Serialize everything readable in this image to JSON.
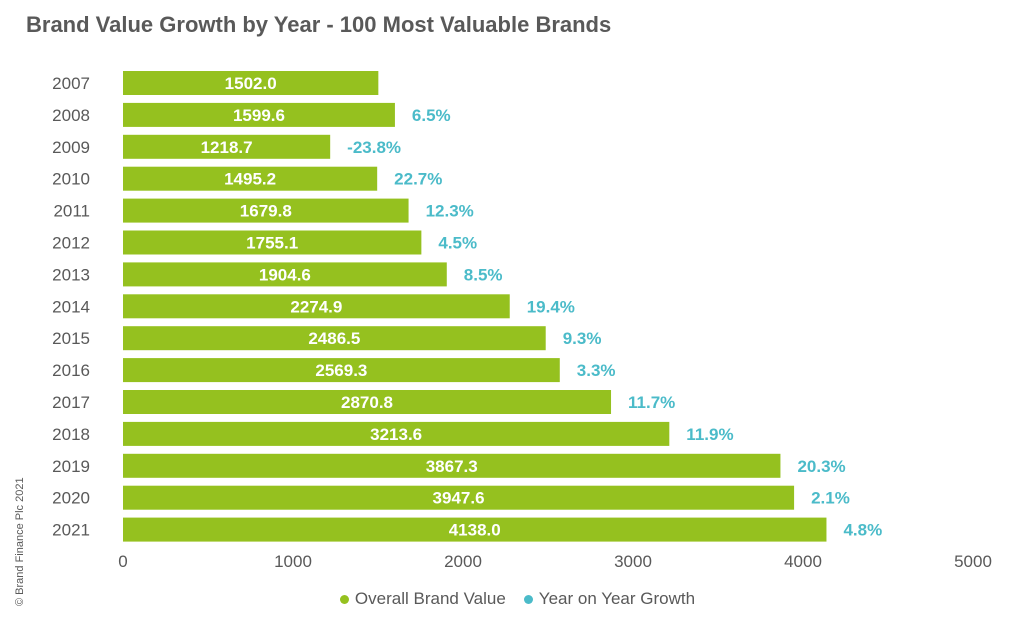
{
  "title": "Brand Value Growth by Year - 100 Most Valuable Brands",
  "copyright": "© Brand Finance Plc 2021",
  "colors": {
    "bar": "#95c11f",
    "growth": "#4bbbc9",
    "text": "#595959"
  },
  "legend": {
    "value_label": "Overall Brand Value",
    "growth_label": "Year on Year Growth"
  },
  "chart_data": {
    "type": "bar",
    "orientation": "horizontal",
    "title": "Brand Value Growth by Year - 100 Most Valuable Brands",
    "categories": [
      "2007",
      "2008",
      "2009",
      "2010",
      "2011",
      "2012",
      "2013",
      "2014",
      "2015",
      "2016",
      "2017",
      "2018",
      "2019",
      "2020",
      "2021"
    ],
    "series": [
      {
        "name": "Overall Brand Value",
        "values": [
          1502.0,
          1599.6,
          1218.7,
          1495.2,
          1679.8,
          1755.1,
          1904.6,
          2274.9,
          2486.5,
          2569.3,
          2870.8,
          3213.6,
          3867.3,
          3947.6,
          4138.0
        ],
        "labels": [
          "1502.0",
          "1599.6",
          "1218.7",
          "1495.2",
          "1679.8",
          "1755.1",
          "1904.6",
          "2274.9",
          "2486.5",
          "2569.3",
          "2870.8",
          "3213.6",
          "3867.3",
          "3947.6",
          "4138.0"
        ]
      },
      {
        "name": "Year on Year Growth",
        "values": [
          null,
          6.5,
          -23.8,
          22.7,
          12.3,
          4.5,
          8.5,
          19.4,
          9.3,
          3.3,
          11.7,
          11.9,
          20.3,
          2.1,
          4.8
        ],
        "labels": [
          "",
          "6.5%",
          "-23.8%",
          "22.7%",
          "12.3%",
          "4.5%",
          "8.5%",
          "19.4%",
          "9.3%",
          "3.3%",
          "11.7%",
          "11.9%",
          "20.3%",
          "2.1%",
          "4.8%"
        ]
      }
    ],
    "xlim": [
      0,
      5000
    ],
    "xticks": [
      "0",
      "1000",
      "2000",
      "3000",
      "4000",
      "5000"
    ],
    "grid": false,
    "legend_position": "bottom"
  }
}
